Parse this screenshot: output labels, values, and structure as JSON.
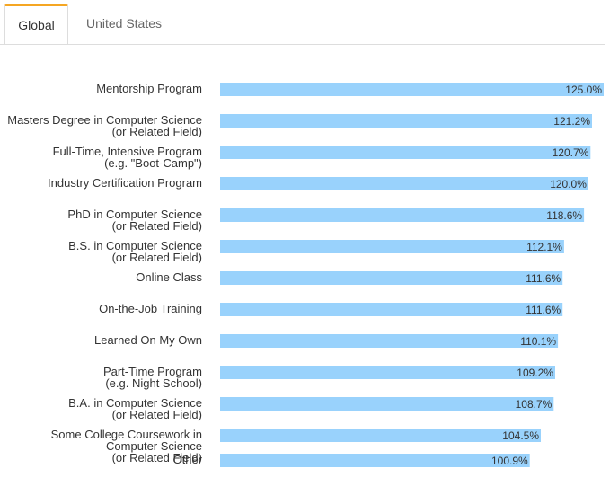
{
  "tabs": [
    {
      "label": "Global",
      "active": true
    },
    {
      "label": "United States",
      "active": false
    }
  ],
  "colors": {
    "bar": "#99d2fc",
    "accent": "#f5a623"
  },
  "chart_data": {
    "type": "bar",
    "orientation": "horizontal",
    "title": "",
    "xlabel": "",
    "ylabel": "",
    "xlim": [
      0,
      125
    ],
    "grid": false,
    "legend": "none",
    "categories": [
      [
        "Mentorship Program"
      ],
      [
        "Masters Degree in Computer Science",
        "(or Related Field)"
      ],
      [
        "Full-Time, Intensive Program",
        "(e.g. \"Boot-Camp\")"
      ],
      [
        "Industry Certification Program"
      ],
      [
        "PhD in Computer Science",
        "(or Related Field)"
      ],
      [
        "B.S. in Computer Science",
        "(or Related Field)"
      ],
      [
        "Online Class"
      ],
      [
        "On-the-Job Training"
      ],
      [
        "Learned On My Own"
      ],
      [
        "Part-Time Program",
        "(e.g. Night School)"
      ],
      [
        "B.A. in Computer Science",
        "(or Related Field)"
      ],
      [
        "Some College Coursework in",
        "Computer Science",
        "(or Related Field)"
      ],
      [
        "Other"
      ]
    ],
    "values": [
      125.0,
      121.2,
      120.7,
      120.0,
      118.6,
      112.1,
      111.6,
      111.6,
      110.1,
      109.2,
      108.7,
      104.5,
      100.9
    ],
    "value_labels": [
      "125.0%",
      "121.2%",
      "120.7%",
      "120.0%",
      "118.6%",
      "112.1%",
      "111.6%",
      "111.6%",
      "110.1%",
      "109.2%",
      "108.7%",
      "104.5%",
      "100.9%"
    ]
  }
}
